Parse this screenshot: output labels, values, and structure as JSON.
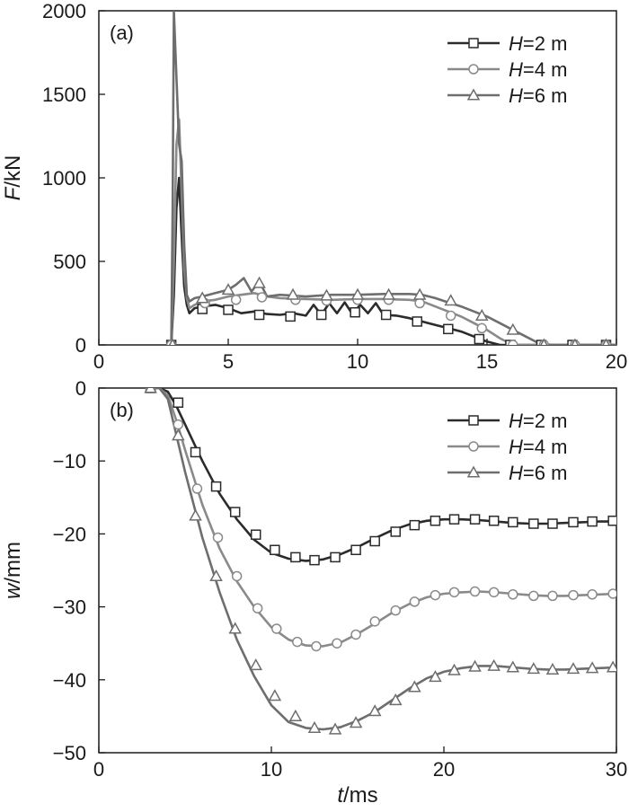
{
  "chart_data": [
    {
      "type": "line",
      "panel_label": "(a)",
      "ylabel_var": "F",
      "ylabel_unit": "/kN",
      "xlabel_var": "",
      "xlabel_unit": "",
      "xlim": [
        0,
        20
      ],
      "ylim": [
        0,
        2000
      ],
      "xticks": [
        "0",
        "5",
        "10",
        "15",
        "20"
      ],
      "yticks": [
        "0",
        "500",
        "1000",
        "1500",
        "2000"
      ],
      "xtick_values": [
        0,
        5,
        10,
        15,
        20
      ],
      "ytick_values": [
        0,
        500,
        1000,
        1500,
        2000
      ],
      "legend_position": "top-right",
      "grid": false,
      "series": [
        {
          "name_var": "H",
          "name_rest": "=2 m",
          "marker": "square",
          "color": "#2b2b2b",
          "x": [
            2.8,
            2.9,
            3.0,
            3.1,
            3.2,
            3.3,
            3.4,
            3.5,
            3.7,
            4.0,
            4.5,
            5.0,
            5.5,
            6.0,
            6.5,
            7.0,
            7.5,
            8.0,
            8.3,
            8.6,
            8.9,
            9.2,
            9.5,
            9.8,
            10.1,
            10.4,
            10.7,
            11.0,
            11.5,
            12.0,
            12.5,
            13.0,
            13.5,
            14.0,
            14.5,
            15.0,
            15.5,
            16.0,
            17.0,
            18.0,
            19.0,
            20.0
          ],
          "y": [
            0,
            300,
            820,
            1000,
            650,
            350,
            240,
            190,
            220,
            230,
            240,
            220,
            190,
            200,
            185,
            180,
            190,
            175,
            240,
            180,
            250,
            190,
            255,
            185,
            240,
            190,
            250,
            180,
            175,
            160,
            140,
            120,
            100,
            80,
            50,
            20,
            0,
            0,
            0,
            0,
            0,
            0
          ],
          "marker_x": [
            2.8,
            4.0,
            5.0,
            6.2,
            7.4,
            8.6,
            9.9,
            11.1,
            12.3,
            13.5,
            14.7,
            15.9,
            17.1,
            18.3,
            19.6
          ],
          "marker_y": [
            0,
            215,
            210,
            180,
            170,
            180,
            195,
            180,
            140,
            95,
            35,
            0,
            0,
            0,
            0
          ]
        },
        {
          "name_var": "H",
          "name_rest": "=4 m",
          "marker": "circle",
          "color": "#8a8a8a",
          "x": [
            2.8,
            2.9,
            3.0,
            3.1,
            3.2,
            3.3,
            3.4,
            3.5,
            3.7,
            4.0,
            4.5,
            5.0,
            5.5,
            6.0,
            6.5,
            7.0,
            8.0,
            9.0,
            10.0,
            11.0,
            12.0,
            12.5,
            13.0,
            13.5,
            14.0,
            14.5,
            15.0,
            15.5,
            16.0,
            17.0,
            18.0,
            19.0,
            20.0
          ],
          "y": [
            0,
            500,
            1200,
            1350,
            900,
            450,
            280,
            220,
            240,
            260,
            270,
            290,
            300,
            310,
            290,
            280,
            275,
            270,
            275,
            275,
            270,
            260,
            230,
            200,
            170,
            130,
            90,
            40,
            0,
            0,
            0,
            0,
            0
          ],
          "marker_x": [
            2.8,
            4.1,
            5.3,
            6.3,
            7.6,
            8.8,
            10.0,
            11.2,
            12.4,
            13.6,
            14.8,
            16.0,
            17.2,
            18.4,
            19.6
          ],
          "marker_y": [
            0,
            250,
            270,
            285,
            270,
            265,
            270,
            270,
            250,
            175,
            100,
            0,
            0,
            0,
            0
          ]
        },
        {
          "name_var": "H",
          "name_rest": "=6 m",
          "marker": "triangle",
          "color": "#6e6e6e",
          "x": [
            2.8,
            2.85,
            2.9,
            3.0,
            3.1,
            3.2,
            3.3,
            3.4,
            3.5,
            3.7,
            4.0,
            4.5,
            5.0,
            5.3,
            5.6,
            5.9,
            6.2,
            6.5,
            7.0,
            8.0,
            9.0,
            10.0,
            11.0,
            12.0,
            12.5,
            13.0,
            13.5,
            14.0,
            14.5,
            15.0,
            15.5,
            16.0,
            16.5,
            17.0,
            17.5,
            18.0,
            19.0,
            20.0
          ],
          "y": [
            0,
            800,
            2000,
            1600,
            1200,
            1100,
            600,
            300,
            260,
            280,
            290,
            310,
            330,
            360,
            400,
            320,
            380,
            290,
            300,
            290,
            300,
            300,
            305,
            305,
            300,
            280,
            255,
            230,
            200,
            170,
            130,
            90,
            50,
            10,
            0,
            0,
            0,
            0
          ],
          "marker_x": [
            2.85,
            4.0,
            5.0,
            6.2,
            7.5,
            8.8,
            10.0,
            11.2,
            12.4,
            13.6,
            14.8,
            16.0,
            17.2,
            18.4,
            19.6
          ],
          "marker_y": [
            0,
            280,
            330,
            370,
            300,
            295,
            300,
            300,
            300,
            265,
            175,
            90,
            0,
            0,
            0
          ]
        }
      ]
    },
    {
      "type": "line",
      "panel_label": "(b)",
      "ylabel_var": "w",
      "ylabel_unit": "/mm",
      "xlabel_var": "t",
      "xlabel_unit": "/ms",
      "xlim": [
        0,
        30
      ],
      "ylim": [
        -50,
        0
      ],
      "xticks": [
        "0",
        "10",
        "20",
        "30"
      ],
      "yticks": [
        "0",
        "−10",
        "−20",
        "−30",
        "−40",
        "−50"
      ],
      "xtick_values": [
        0,
        10,
        20,
        30
      ],
      "ytick_values": [
        0,
        -10,
        -20,
        -30,
        -40,
        -50
      ],
      "legend_position": "top-right",
      "grid": false,
      "series": [
        {
          "name_var": "H",
          "name_rest": "=2 m",
          "marker": "square",
          "color": "#2b2b2b",
          "x": [
            3.0,
            3.5,
            4.0,
            4.5,
            5.0,
            6.0,
            7.0,
            8.0,
            9.0,
            10.0,
            11.0,
            12.0,
            13.0,
            14.0,
            15.0,
            16.0,
            17.0,
            18.0,
            19.0,
            20.0,
            21.0,
            22.0,
            23.0,
            24.0,
            25.0,
            26.0,
            27.0,
            28.0,
            29.0,
            30.0
          ],
          "y": [
            0,
            0,
            -0.5,
            -2.5,
            -5.0,
            -10.0,
            -14.5,
            -18.0,
            -20.8,
            -22.6,
            -23.4,
            -23.7,
            -23.5,
            -22.8,
            -21.8,
            -20.6,
            -19.5,
            -18.7,
            -18.2,
            -18.0,
            -18.0,
            -18.1,
            -18.3,
            -18.5,
            -18.6,
            -18.6,
            -18.5,
            -18.4,
            -18.3,
            -18.3
          ],
          "marker_x": [
            3.0,
            4.6,
            5.6,
            6.8,
            7.9,
            9.1,
            10.2,
            11.4,
            12.5,
            13.7,
            14.9,
            16.0,
            17.2,
            18.3,
            19.5,
            20.6,
            21.8,
            22.9,
            24.0,
            25.2,
            26.3,
            27.5,
            28.6,
            29.8
          ],
          "marker_y": [
            0,
            -2.0,
            -8.8,
            -13.5,
            -17.0,
            -20.1,
            -22.2,
            -23.2,
            -23.6,
            -23.2,
            -22.2,
            -21.0,
            -19.7,
            -18.8,
            -18.2,
            -18.0,
            -18.0,
            -18.2,
            -18.4,
            -18.6,
            -18.6,
            -18.4,
            -18.3,
            -18.2
          ]
        },
        {
          "name_var": "H",
          "name_rest": "=4 m",
          "marker": "circle",
          "color": "#8a8a8a",
          "x": [
            3.0,
            3.5,
            4.0,
            4.5,
            5.0,
            6.0,
            7.0,
            8.0,
            9.0,
            10.0,
            11.0,
            12.0,
            13.0,
            14.0,
            15.0,
            16.0,
            17.0,
            18.0,
            19.0,
            20.0,
            21.0,
            22.0,
            23.0,
            24.0,
            25.0,
            26.0,
            27.0,
            28.0,
            29.0,
            30.0
          ],
          "y": [
            0,
            0,
            -1.0,
            -4.5,
            -8.5,
            -16.0,
            -22.0,
            -26.5,
            -30.0,
            -32.8,
            -34.5,
            -35.3,
            -35.4,
            -34.9,
            -33.7,
            -32.3,
            -30.8,
            -29.6,
            -28.7,
            -28.2,
            -28.0,
            -27.9,
            -28.0,
            -28.2,
            -28.4,
            -28.5,
            -28.5,
            -28.4,
            -28.3,
            -28.2
          ],
          "marker_x": [
            3.0,
            4.6,
            5.7,
            6.9,
            8.0,
            9.2,
            10.3,
            11.5,
            12.6,
            13.8,
            14.9,
            16.0,
            17.2,
            18.3,
            19.5,
            20.6,
            21.8,
            22.9,
            24.0,
            25.2,
            26.3,
            27.5,
            28.6,
            29.8
          ],
          "marker_y": [
            0,
            -5.0,
            -13.8,
            -20.5,
            -25.8,
            -30.2,
            -33.0,
            -34.8,
            -35.4,
            -35.0,
            -33.8,
            -32.0,
            -30.5,
            -29.3,
            -28.4,
            -28.0,
            -27.9,
            -28.0,
            -28.3,
            -28.5,
            -28.5,
            -28.4,
            -28.3,
            -28.2
          ]
        },
        {
          "name_var": "H",
          "name_rest": "=6 m",
          "marker": "triangle",
          "color": "#6e6e6e",
          "x": [
            3.0,
            3.5,
            4.0,
            4.5,
            5.0,
            6.0,
            7.0,
            8.0,
            9.0,
            10.0,
            11.0,
            12.0,
            13.0,
            14.0,
            15.0,
            16.0,
            17.0,
            18.0,
            19.0,
            20.0,
            21.0,
            22.0,
            23.0,
            24.0,
            25.0,
            26.0,
            27.0,
            28.0,
            29.0,
            30.0
          ],
          "y": [
            0,
            0,
            -1.5,
            -6.5,
            -11.5,
            -20.5,
            -28.0,
            -34.5,
            -39.5,
            -43.5,
            -45.8,
            -46.6,
            -46.8,
            -46.5,
            -45.6,
            -44.4,
            -42.8,
            -41.2,
            -39.8,
            -38.9,
            -38.4,
            -38.1,
            -38.1,
            -38.3,
            -38.5,
            -38.6,
            -38.6,
            -38.5,
            -38.4,
            -38.3
          ],
          "marker_x": [
            3.0,
            4.6,
            5.6,
            6.8,
            7.9,
            9.1,
            10.2,
            11.4,
            12.5,
            13.7,
            14.9,
            16.0,
            17.2,
            18.3,
            19.5,
            20.6,
            21.8,
            22.9,
            24.0,
            25.2,
            26.3,
            27.5,
            28.6,
            29.8
          ],
          "marker_y": [
            0,
            -6.5,
            -17.5,
            -25.8,
            -33.0,
            -38.0,
            -42.2,
            -45.0,
            -46.6,
            -46.8,
            -45.9,
            -44.3,
            -42.8,
            -41.0,
            -39.6,
            -38.7,
            -38.2,
            -38.1,
            -38.3,
            -38.5,
            -38.6,
            -38.5,
            -38.4,
            -38.3
          ]
        }
      ]
    }
  ]
}
